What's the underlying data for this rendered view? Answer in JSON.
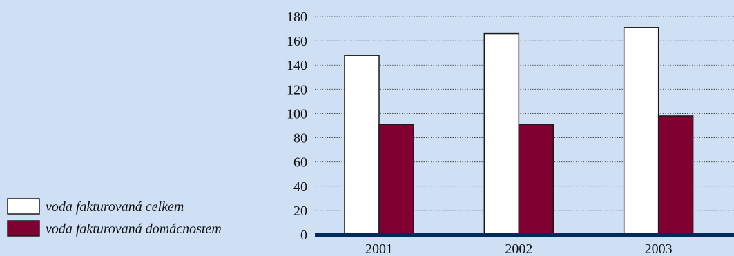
{
  "chart_data": {
    "type": "bar",
    "categories": [
      "2001",
      "2002",
      "2003"
    ],
    "series": [
      {
        "name": "voda fakturovaná celkem",
        "values": [
          148,
          166,
          171
        ],
        "color": "#ffffff"
      },
      {
        "name": "voda fakturovaná domácnostem",
        "values": [
          91,
          91,
          98
        ],
        "color": "#800032"
      }
    ],
    "yticks": [
      "0",
      "20",
      "40",
      "60",
      "80",
      "100",
      "120",
      "140",
      "160",
      "180"
    ],
    "ylim": [
      0,
      180
    ],
    "grid": true,
    "legend_position": "bottom-left",
    "axis_color": "#002a5c",
    "background_color": "#cfe0f4"
  }
}
